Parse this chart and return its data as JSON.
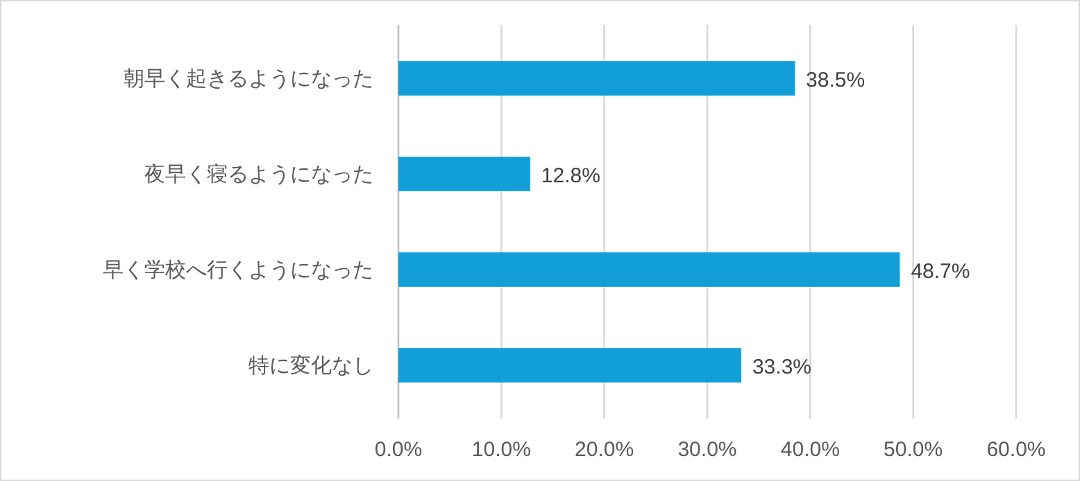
{
  "chart_data": {
    "type": "bar",
    "orientation": "horizontal",
    "categories": [
      "朝早く起きるようになった",
      "夜早く寝るようになった",
      "早く学校へ行くようになった",
      "特に変化なし"
    ],
    "values": [
      38.5,
      12.8,
      48.7,
      33.3
    ],
    "value_labels": [
      "38.5%",
      "12.8%",
      "48.7%",
      "33.3%"
    ],
    "color": "#129fd8",
    "xlim": [
      0,
      60
    ],
    "xticks": [
      {
        "value": 0,
        "label": "0.0%"
      },
      {
        "value": 10,
        "label": "10.0%"
      },
      {
        "value": 20,
        "label": "20.0%"
      },
      {
        "value": 30,
        "label": "30.0%"
      },
      {
        "value": 40,
        "label": "40.0%"
      },
      {
        "value": 50,
        "label": "50.0%"
      },
      {
        "value": 60,
        "label": "60.0%"
      }
    ],
    "grid": "x"
  }
}
